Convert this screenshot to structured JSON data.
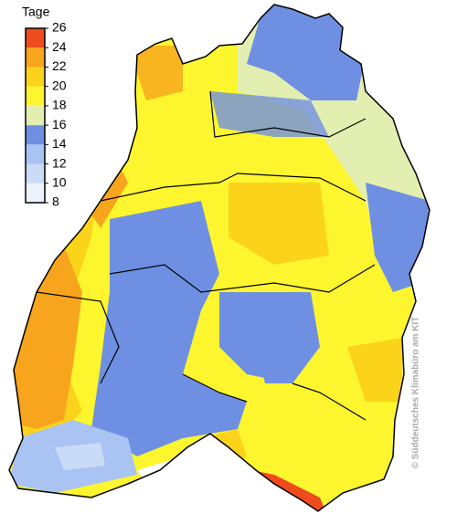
{
  "legend": {
    "title": "Tage",
    "ticks": [
      8,
      10,
      12,
      14,
      16,
      18,
      20,
      22,
      24,
      26
    ],
    "colors": [
      "#eef3fb",
      "#c9dbf6",
      "#a9c3f2",
      "#6f90e2",
      "#e3efb0",
      "#fdf62e",
      "#fbd31a",
      "#f7a51c",
      "#ef4b1f"
    ]
  },
  "copyright": "© Süddeutsches Klimabüro am KIT"
}
